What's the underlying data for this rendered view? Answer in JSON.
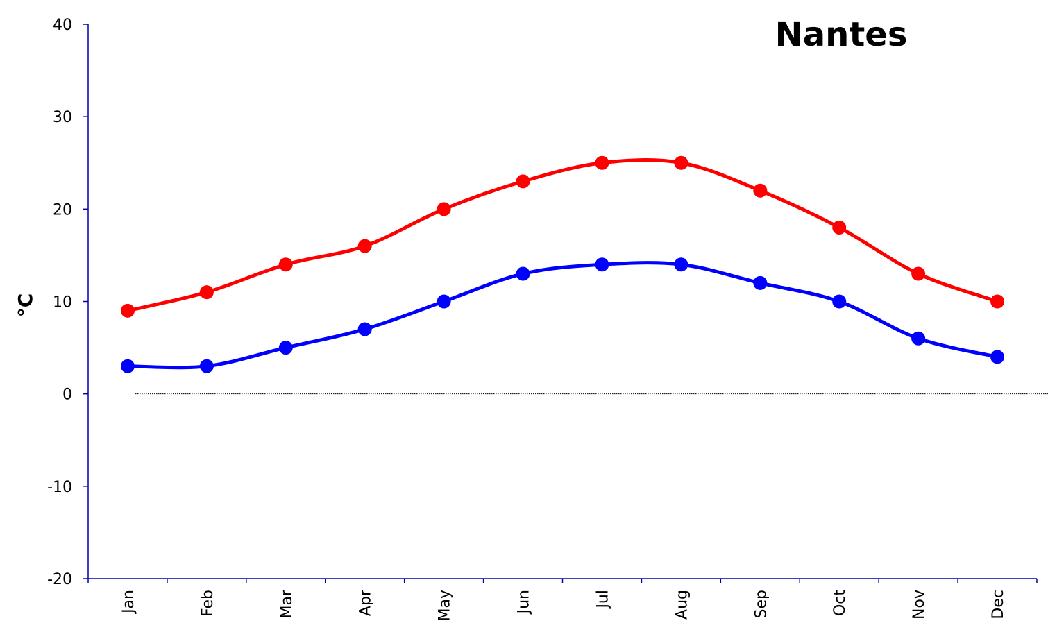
{
  "chart_data": {
    "type": "line",
    "title": "Nantes",
    "xlabel": "",
    "ylabel": "°C",
    "categories": [
      "Jan",
      "Feb",
      "Mar",
      "Apr",
      "May",
      "Jun",
      "Jul",
      "Aug",
      "Sep",
      "Oct",
      "Nov",
      "Dec"
    ],
    "series": [
      {
        "values": [
          9,
          11,
          14,
          16,
          20,
          23,
          25,
          25,
          22,
          18,
          13,
          10
        ],
        "color": "#ff0000"
      },
      {
        "values": [
          3,
          3,
          5,
          7,
          10,
          13,
          14,
          14,
          12,
          10,
          6,
          4
        ],
        "color": "#0000ff"
      }
    ],
    "ylim": [
      -20,
      40
    ],
    "yticks": [
      40,
      30,
      20,
      10,
      0,
      -10,
      -20
    ],
    "axis_color": "#0000aa",
    "zero_line": "dotted",
    "grid": false,
    "legend": "none"
  }
}
